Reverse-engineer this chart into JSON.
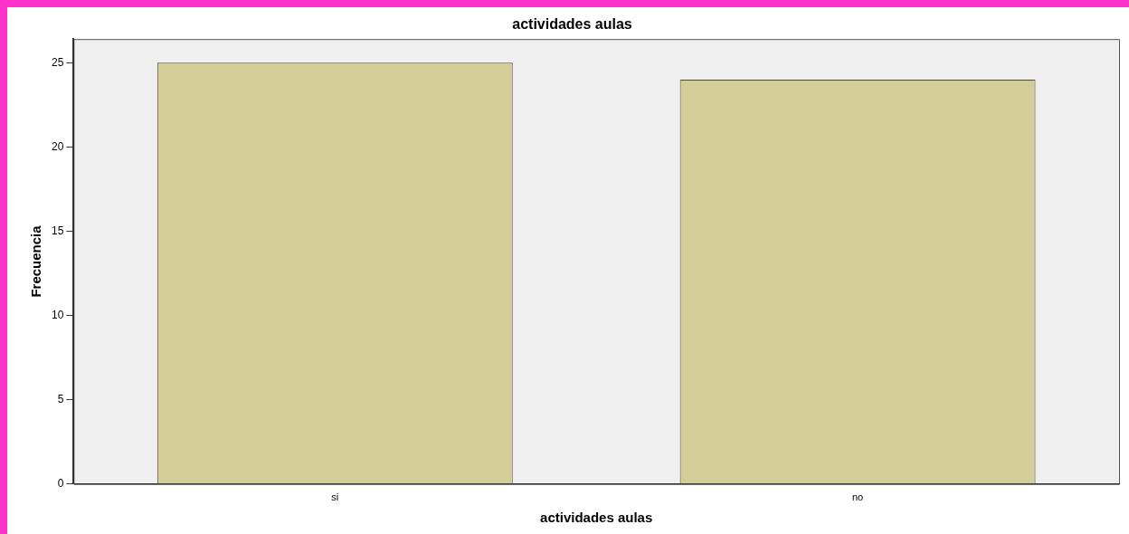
{
  "chart_data": {
    "type": "bar",
    "title": "actividades aulas",
    "xlabel": "actividades aulas",
    "ylabel": "Frecuencia",
    "categories": [
      "si",
      "no"
    ],
    "values": [
      25,
      24
    ],
    "color": "#d3cd97",
    "ylim": [
      0,
      26.4
    ],
    "yticks": [
      0,
      5,
      10,
      15,
      20,
      25
    ],
    "grid": false,
    "legend": false
  }
}
